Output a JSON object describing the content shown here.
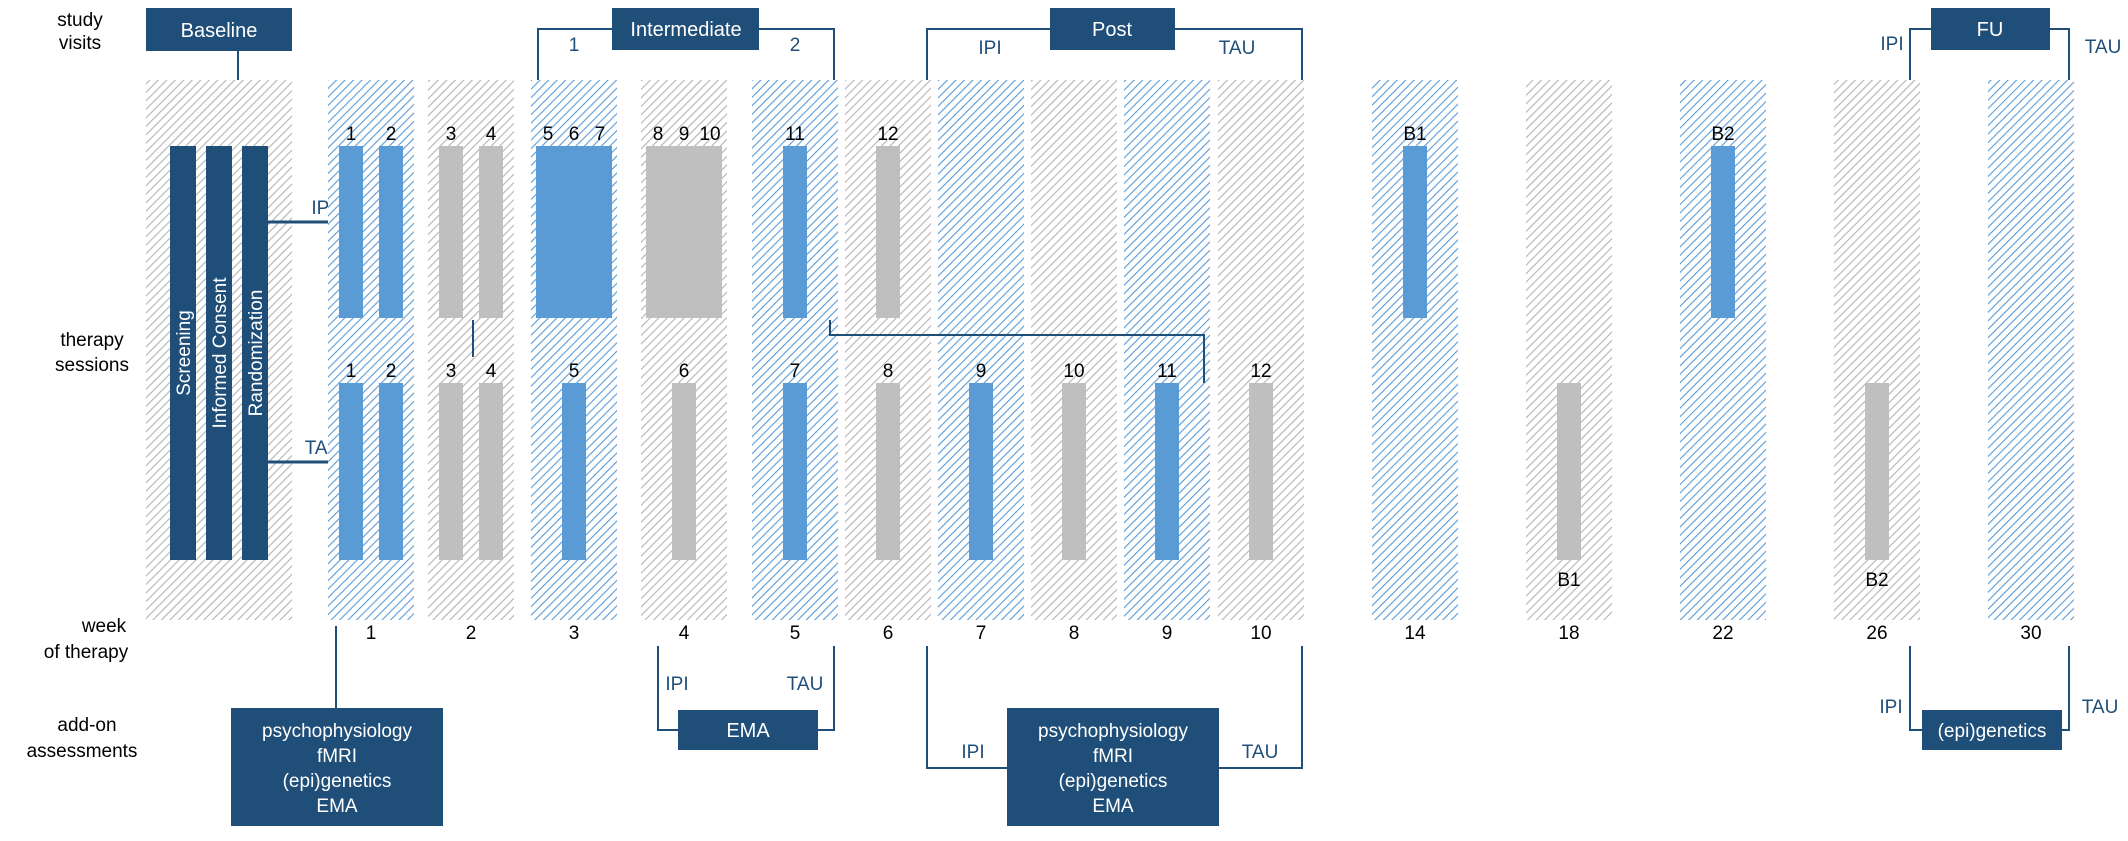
{
  "labels": {
    "study_visits": [
      "study",
      "visits"
    ],
    "therapy_sessions": [
      "therapy",
      "sessions"
    ],
    "week_of_therapy": [
      "week",
      "of therapy"
    ],
    "add_on_assessments": [
      "add-on",
      "assessments"
    ]
  },
  "arms": {
    "ipi": "IPI",
    "tau": "TAU"
  },
  "visits": {
    "baseline": "Baseline",
    "intermediate": "Intermediate",
    "intermediate_left": "1",
    "intermediate_right": "2",
    "post": "Post",
    "fu": "FU"
  },
  "baseline_steps": [
    "Screening",
    "Informed Consent",
    "Randomization"
  ],
  "weeks": [
    "1",
    "2",
    "3",
    "4",
    "5",
    "6",
    "7",
    "8",
    "9",
    "10",
    "14",
    "18",
    "22",
    "26",
    "30"
  ],
  "week_arm": [
    "ipi",
    "tau",
    "ipi",
    "tau",
    "ipi",
    "tau",
    "ipi",
    "tau",
    "ipi",
    "tau",
    "ipi",
    "tau",
    "ipi",
    "tau",
    "ipi"
  ],
  "ipi_sessions": [
    {
      "week": "1",
      "labels": [
        "1",
        "2"
      ]
    },
    {
      "week": "2",
      "labels": [
        "3",
        "4"
      ]
    },
    {
      "week": "3",
      "labels": [
        "5",
        "6",
        "7"
      ]
    },
    {
      "week": "4",
      "labels": [
        "8",
        "9",
        "10"
      ]
    },
    {
      "week": "5",
      "labels": [
        "11"
      ]
    },
    {
      "week": "6",
      "labels": [
        "12"
      ]
    },
    {
      "week": "14",
      "labels": [
        "B1"
      ]
    },
    {
      "week": "22",
      "labels": [
        "B2"
      ]
    }
  ],
  "tau_sessions": [
    {
      "week": "1",
      "labels": [
        "1",
        "2"
      ]
    },
    {
      "week": "2",
      "labels": [
        "3",
        "4"
      ]
    },
    {
      "week": "3",
      "labels": [
        "5"
      ]
    },
    {
      "week": "4",
      "labels": [
        "6"
      ]
    },
    {
      "week": "5",
      "labels": [
        "7"
      ]
    },
    {
      "week": "6",
      "labels": [
        "8"
      ]
    },
    {
      "week": "7",
      "labels": [
        "9"
      ]
    },
    {
      "week": "8",
      "labels": [
        "10"
      ]
    },
    {
      "week": "9",
      "labels": [
        "11"
      ]
    },
    {
      "week": "10",
      "labels": [
        "12"
      ]
    },
    {
      "week": "18",
      "labels": [
        "B1"
      ]
    },
    {
      "week": "26",
      "labels": [
        "B2"
      ]
    }
  ],
  "addons": {
    "baseline": [
      "psychophysiology",
      "fMRI",
      "(epi)genetics",
      "EMA"
    ],
    "ema": [
      "EMA"
    ],
    "post": [
      "psychophysiology",
      "fMRI",
      "(epi)genetics",
      "EMA"
    ],
    "fu": [
      "(epi)genetics"
    ]
  },
  "colors": {
    "navy": "#1f4e79",
    "blue": "#5b9bd5",
    "gray": "#bfbfbf",
    "hatch_gray": "#bfbfbf",
    "hatch_blue": "#5b9bd5"
  }
}
